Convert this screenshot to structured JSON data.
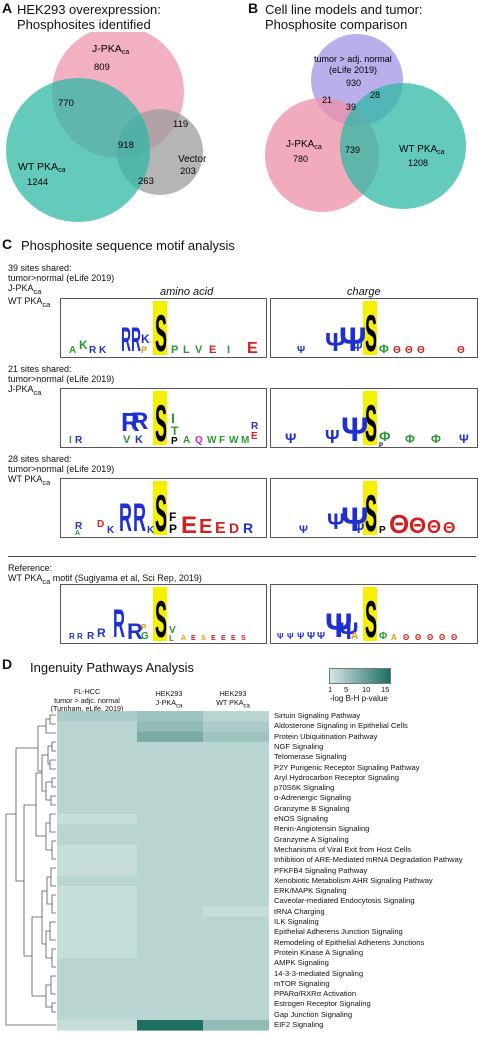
{
  "panelA": {
    "letter": "A",
    "title_line1": "HEK293 overexpression:",
    "title_line2": "Phosphosites identified",
    "labels": {
      "jpka": "J-PKA",
      "jpka_sub": "ca",
      "wtpka": "WT PKA",
      "wtpka_sub": "ca",
      "vector": "Vector"
    },
    "counts": {
      "jpka_only": "809",
      "jpka_wt": "770",
      "center": "918",
      "jpka_vec": "119",
      "wt_only": "1244",
      "wt_vec": "263",
      "vec_only": "203"
    }
  },
  "panelB": {
    "letter": "B",
    "title_line1": "Cell line models and tumor:",
    "title_line2": "Phosphosite comparison",
    "labels": {
      "tumor1": "tumor > adj. normal",
      "tumor2": "(eLife 2019)",
      "jpka": "J-PKA",
      "jpka_sub": "ca",
      "wtpka": "WT PKA",
      "wtpka_sub": "ca"
    },
    "counts": {
      "tumor_only": "930",
      "tumor_jpka": "21",
      "center": "39",
      "tumor_wt": "28",
      "jpka_only": "780",
      "jpka_wt": "739",
      "wt_only": "1208"
    }
  },
  "panelC": {
    "letter": "C",
    "title": "Phosphosite sequence motif analysis",
    "col_amino": "amino acid",
    "col_charge": "charge",
    "rows": [
      {
        "l1": "39 sites shared:",
        "l2": "tumor>normal (eLife 2019)",
        "l3": "J-PKA",
        "l3sub": "ca",
        "l4": "WT PKA",
        "l4sub": "ca"
      },
      {
        "l1": "21 sites shared:",
        "l2": "tumor>normal (eLife 2019)",
        "l3": "J-PKA",
        "l3sub": "ca",
        "l4": "",
        "l4sub": ""
      },
      {
        "l1": "28 sites shared:",
        "l2": "tumor>normal (eLife 2019)",
        "l3": "WT PKA",
        "l3sub": "ca",
        "l4": "",
        "l4sub": ""
      }
    ],
    "reference_l1": "Reference:",
    "reference_l2a": "WT PKA",
    "reference_l2sub": "ca",
    "reference_l2b": " motif (Sugiyama et al, Sci Rep, 2019)"
  },
  "panelD": {
    "letter": "D",
    "title": "Ingenuity Pathways Analysis",
    "legend_ticks": [
      "1",
      "5",
      "10",
      "15"
    ],
    "legend_label": "-log B-H p-value",
    "col1_l1": "FL-HCC",
    "col1_l2": "tumor > adjc. normal",
    "col1_l3": "(Turnham, eLife, 2019)",
    "col2_l1": "HEK293",
    "col2_l2": "J-PKA",
    "col2_sub": "ca",
    "col3_l1": "HEK293",
    "col3_l2": "WT PKA",
    "col3_sub": "ca",
    "pathways": [
      "Sirtuin Signaling Pathway",
      "Aldosterone Signaling in Epithelial Cells",
      "Protein Ubiquitination Pathway",
      "NGF Signaling",
      "Telomerase Signaling",
      "P2Y Purigenic Receptor Signaling Pathway",
      "Aryl Hydrocarbon Receptor Signaling",
      "p70S6K Signaling",
      "α-Adrenergic Signaling",
      "Granzyme B Signaling",
      "eNOS Signaling",
      "Renin-Angiotensin Signaling",
      "Granzyme A Signaling",
      "Mechanisms of Viral Exit from Host Cells",
      "Inhibition of ARE-Mediated mRNA Degradation Pathway",
      "PFKFB4 Signaling Pathway",
      "Xenobiotic Metabolism AHR Signaling Pathway",
      "ERK/MAPK Signaling",
      "Caveolar-mediated Endocytosis Signaling",
      "tRNA Charging",
      "ILK Signaling",
      "Epithelial Adherens Junction Signaling",
      "Remodeling of Epithelial Adherens Junctions",
      "Protein Kinase A Signaling",
      "AMPK Signaling",
      "14-3-3-mediated Signaling",
      "mTOR Signaling",
      "PPARα/RXRα Activation",
      "Estrogen Receptor Signaling",
      "Gap Junction Signaling",
      "EIF2 Signaling"
    ],
    "heat_values": [
      [
        4,
        5,
        3
      ],
      [
        3,
        6,
        4
      ],
      [
        3,
        8,
        5
      ],
      [
        3,
        3,
        3
      ],
      [
        3,
        3,
        3
      ],
      [
        3,
        3,
        3
      ],
      [
        3,
        3,
        3
      ],
      [
        3,
        3,
        3
      ],
      [
        3,
        3,
        3
      ],
      [
        3,
        3,
        3
      ],
      [
        2,
        3,
        3
      ],
      [
        3,
        3,
        3
      ],
      [
        3,
        3,
        3
      ],
      [
        2,
        3,
        3
      ],
      [
        2,
        3,
        3
      ],
      [
        2,
        3,
        3
      ],
      [
        3,
        3,
        3
      ],
      [
        2,
        3,
        3
      ],
      [
        2,
        3,
        3
      ],
      [
        2,
        3,
        2
      ],
      [
        2,
        3,
        3
      ],
      [
        2,
        3,
        3
      ],
      [
        2,
        3,
        3
      ],
      [
        2,
        3,
        3
      ],
      [
        3,
        3,
        3
      ],
      [
        3,
        3,
        3
      ],
      [
        3,
        3,
        3
      ],
      [
        3,
        3,
        3
      ],
      [
        3,
        3,
        3
      ],
      [
        3,
        3,
        3
      ],
      [
        2,
        15,
        6
      ]
    ],
    "colors": {
      "low": "#d3e6e5",
      "high": "#1e6e62"
    }
  },
  "colors": {
    "pink": "#ee8fa6",
    "teal": "#2fb8a5",
    "gray": "#9c9c9c",
    "purple": "#a99be6",
    "yellow": "#f4f000"
  }
}
